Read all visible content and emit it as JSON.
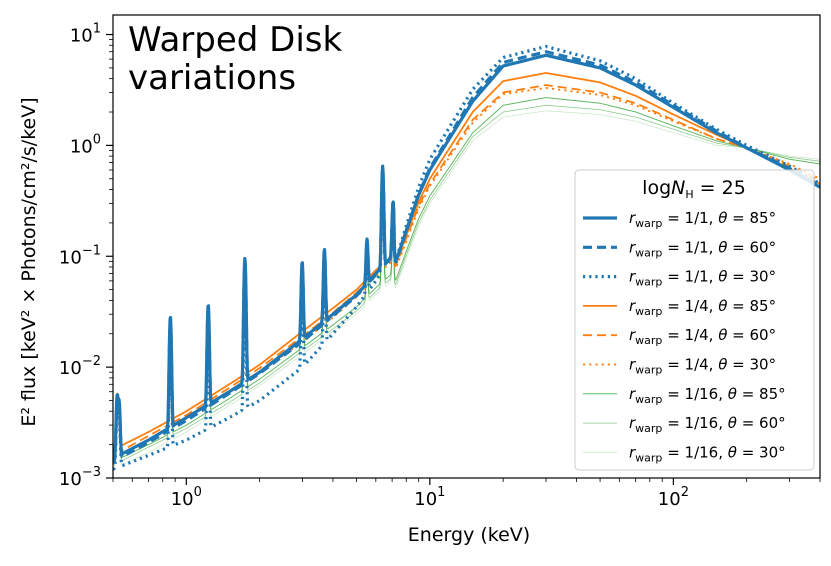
{
  "chart_data": {
    "type": "line",
    "title_lines": [
      "Warped Disk",
      "variations"
    ],
    "xlabel": "Energy (keV)",
    "ylabel": "E² flux [keV² × Photons/cm²/s/keV]",
    "xscale": "log",
    "yscale": "log",
    "xlim": [
      0.5,
      400
    ],
    "ylim": [
      0.001,
      15
    ],
    "x_ticks": [
      {
        "value": 1,
        "base": "10",
        "exp": "0"
      },
      {
        "value": 10,
        "base": "10",
        "exp": "1"
      },
      {
        "value": 100,
        "base": "10",
        "exp": "2"
      }
    ],
    "y_ticks": [
      {
        "value": 0.001,
        "base": "10",
        "exp": "−3"
      },
      {
        "value": 0.01,
        "base": "10",
        "exp": "−2"
      },
      {
        "value": 0.1,
        "base": "10",
        "exp": "−1"
      },
      {
        "value": 1,
        "base": "10",
        "exp": "0"
      },
      {
        "value": 10,
        "base": "10",
        "exp": "1"
      }
    ],
    "legend": {
      "title": "logN_H = 25",
      "title_text": "log",
      "title_var": "N",
      "title_sub": "H",
      "title_eq": " = 25",
      "location": "right"
    },
    "emission_lines": [
      {
        "energy": 0.52,
        "scale": 2.5
      },
      {
        "energy": 0.53,
        "scale": 2.0
      },
      {
        "energy": 0.86,
        "scale": 9.0
      },
      {
        "energy": 1.23,
        "scale": 7.0
      },
      {
        "energy": 1.74,
        "scale": 12.0
      },
      {
        "energy": 2.99,
        "scale": 4.0
      },
      {
        "energy": 3.69,
        "scale": 3.5
      },
      {
        "energy": 5.52,
        "scale": 1.5
      },
      {
        "energy": 6.4,
        "scale": 7.0
      },
      {
        "energy": 7.06,
        "scale": 2.0
      }
    ],
    "series": [
      {
        "name": "r_warp = 1/1, θ = 85°",
        "r_label": "r",
        "r_sub": "warp",
        "r_value": " = 1/1, ",
        "theta_label": "θ",
        "theta_value": " = 85°",
        "color": "#1f77b4",
        "dash": "solid",
        "width": 3.2,
        "opacity": 1.0,
        "x": [
          0.5,
          0.7,
          1,
          1.5,
          2,
          3,
          4,
          5,
          6,
          7,
          8,
          10,
          15,
          20,
          30,
          50,
          70,
          100,
          150,
          200,
          300,
          400
        ],
        "y": [
          0.0015,
          0.0022,
          0.0035,
          0.006,
          0.009,
          0.018,
          0.03,
          0.045,
          0.07,
          0.1,
          0.2,
          0.6,
          2.5,
          5.2,
          6.5,
          5.0,
          3.5,
          2.2,
          1.3,
          0.95,
          0.6,
          0.42
        ]
      },
      {
        "name": "r_warp = 1/1, θ = 60°",
        "r_label": "r",
        "r_sub": "warp",
        "r_value": " = 1/1, ",
        "theta_label": "θ",
        "theta_value": " = 60°",
        "color": "#1f77b4",
        "dash": "dashed",
        "width": 3.2,
        "opacity": 1.0,
        "x": [
          0.5,
          0.7,
          1,
          1.5,
          2,
          3,
          4,
          5,
          6,
          7,
          8,
          10,
          15,
          20,
          30,
          50,
          70,
          100,
          150,
          200,
          300,
          400
        ],
        "y": [
          0.0014,
          0.0021,
          0.0033,
          0.0058,
          0.0088,
          0.017,
          0.029,
          0.044,
          0.068,
          0.1,
          0.2,
          0.62,
          2.7,
          5.6,
          7.0,
          5.3,
          3.7,
          2.3,
          1.35,
          0.95,
          0.62,
          0.43
        ]
      },
      {
        "name": "r_warp = 1/1, θ = 30°",
        "r_label": "r",
        "r_sub": "warp",
        "r_value": " = 1/1, ",
        "theta_label": "θ",
        "theta_value": " = 30°",
        "color": "#1f77b4",
        "dash": "dotted",
        "width": 3.2,
        "opacity": 1.0,
        "x": [
          0.5,
          0.7,
          1,
          1.5,
          2,
          3,
          4,
          5,
          6,
          7,
          8,
          10,
          15,
          20,
          30,
          50,
          70,
          100,
          150,
          200,
          300,
          400
        ],
        "y": [
          0.0012,
          0.0016,
          0.0022,
          0.0035,
          0.005,
          0.01,
          0.02,
          0.035,
          0.06,
          0.1,
          0.22,
          0.75,
          3.2,
          6.2,
          7.8,
          5.8,
          4.0,
          2.4,
          1.4,
          1.0,
          0.65,
          0.45
        ]
      },
      {
        "name": "r_warp = 1/4, θ = 85°",
        "r_label": "r",
        "r_sub": "warp",
        "r_value": " = 1/4, ",
        "theta_label": "θ",
        "theta_value": " = 85°",
        "color": "#ff7f0e",
        "dash": "solid",
        "width": 1.8,
        "opacity": 1.0,
        "x": [
          0.5,
          0.7,
          1,
          1.5,
          2,
          3,
          4,
          5,
          6,
          7,
          8,
          10,
          15,
          20,
          30,
          50,
          70,
          100,
          150,
          200,
          300,
          400
        ],
        "y": [
          0.0018,
          0.0026,
          0.004,
          0.007,
          0.0105,
          0.021,
          0.034,
          0.05,
          0.075,
          0.1,
          0.18,
          0.5,
          2.0,
          3.8,
          4.5,
          3.7,
          2.8,
          1.9,
          1.25,
          0.95,
          0.62,
          0.45
        ]
      },
      {
        "name": "r_warp = 1/4, θ = 60°",
        "r_label": "r",
        "r_sub": "warp",
        "r_value": " = 1/4, ",
        "theta_label": "θ",
        "theta_value": " = 60°",
        "color": "#ff7f0e",
        "dash": "dashed",
        "width": 1.8,
        "opacity": 1.0,
        "x": [
          0.5,
          0.7,
          1,
          1.5,
          2,
          3,
          4,
          5,
          6,
          7,
          8,
          10,
          15,
          20,
          30,
          50,
          70,
          100,
          150,
          200,
          300,
          400
        ],
        "y": [
          0.0016,
          0.0024,
          0.0037,
          0.0065,
          0.0098,
          0.019,
          0.031,
          0.047,
          0.07,
          0.095,
          0.17,
          0.45,
          1.7,
          3.0,
          3.5,
          3.0,
          2.4,
          1.7,
          1.15,
          0.95,
          0.65,
          0.48
        ]
      },
      {
        "name": "r_warp = 1/4, θ = 30°",
        "r_label": "r",
        "r_sub": "warp",
        "r_value": " = 1/4, ",
        "theta_label": "θ",
        "theta_value": " = 30°",
        "color": "#ff7f0e",
        "dash": "dotted",
        "width": 1.8,
        "opacity": 1.0,
        "x": [
          0.5,
          0.7,
          1,
          1.5,
          2,
          3,
          4,
          5,
          6,
          7,
          8,
          10,
          15,
          20,
          30,
          50,
          70,
          100,
          150,
          200,
          300,
          400
        ],
        "y": [
          0.0015,
          0.0022,
          0.0034,
          0.006,
          0.009,
          0.017,
          0.028,
          0.043,
          0.066,
          0.09,
          0.16,
          0.43,
          1.6,
          2.9,
          3.3,
          2.85,
          2.3,
          1.65,
          1.15,
          0.95,
          0.68,
          0.5
        ]
      },
      {
        "name": "r_warp = 1/16, θ = 85°",
        "r_label": "r",
        "r_sub": "warp",
        "r_value": " = 1/16, ",
        "theta_label": "θ",
        "theta_value": " = 85°",
        "color": "#2ca02c",
        "dash": "solid",
        "width": 1.0,
        "opacity": 0.75,
        "x": [
          0.5,
          0.7,
          1,
          1.5,
          2,
          3,
          4,
          5,
          6,
          7,
          8,
          10,
          15,
          20,
          30,
          50,
          70,
          100,
          150,
          200,
          300,
          400
        ],
        "y": [
          0.0014,
          0.002,
          0.003,
          0.0052,
          0.0078,
          0.015,
          0.024,
          0.035,
          0.052,
          0.07,
          0.13,
          0.35,
          1.3,
          2.3,
          2.7,
          2.4,
          2.0,
          1.5,
          1.1,
          0.95,
          0.75,
          0.68
        ]
      },
      {
        "name": "r_warp = 1/16, θ = 60°",
        "r_label": "r",
        "r_sub": "warp",
        "r_value": " = 1/16, ",
        "theta_label": "θ",
        "theta_value": " = 60°",
        "color": "#2ca02c",
        "dash": "solid",
        "width": 0.8,
        "opacity": 0.55,
        "x": [
          0.5,
          0.7,
          1,
          1.5,
          2,
          3,
          4,
          5,
          6,
          7,
          8,
          10,
          15,
          20,
          30,
          50,
          70,
          100,
          150,
          200,
          300,
          400
        ],
        "y": [
          0.0013,
          0.0019,
          0.0028,
          0.0048,
          0.0072,
          0.014,
          0.022,
          0.032,
          0.048,
          0.064,
          0.12,
          0.32,
          1.2,
          2.0,
          2.3,
          2.1,
          1.8,
          1.4,
          1.05,
          0.95,
          0.78,
          0.72
        ]
      },
      {
        "name": "r_warp = 1/16, θ = 30°",
        "r_label": "r",
        "r_sub": "warp",
        "r_value": " = 1/16, ",
        "theta_label": "θ",
        "theta_value": " = 30°",
        "color": "#2ca02c",
        "dash": "solid",
        "width": 0.6,
        "opacity": 0.3,
        "x": [
          0.5,
          0.7,
          1,
          1.5,
          2,
          3,
          4,
          5,
          6,
          7,
          8,
          10,
          15,
          20,
          30,
          50,
          70,
          100,
          150,
          200,
          300,
          400
        ],
        "y": [
          0.0012,
          0.0017,
          0.0026,
          0.0045,
          0.0068,
          0.013,
          0.021,
          0.03,
          0.045,
          0.06,
          0.11,
          0.3,
          1.1,
          1.8,
          2.05,
          1.9,
          1.65,
          1.3,
          1.0,
          0.95,
          0.8,
          0.75
        ]
      }
    ]
  }
}
